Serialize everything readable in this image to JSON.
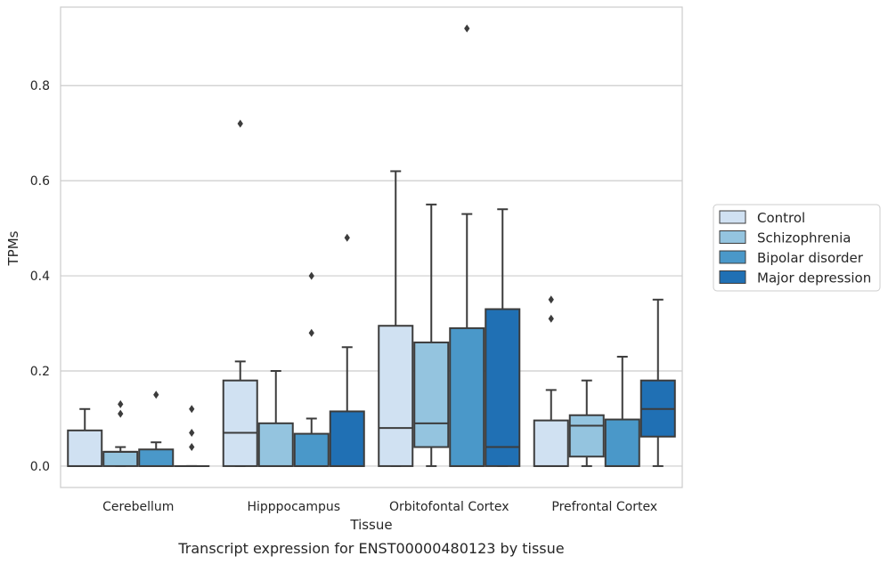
{
  "caption": "Transcript expression for ENST00000480123 by tissue",
  "chart_data": {
    "type": "boxplot",
    "xlabel": "Tissue",
    "ylabel": "TPMs",
    "ylim": [
      -0.045,
      0.965
    ],
    "yticks": [
      "0.0",
      "0.2",
      "0.4",
      "0.6",
      "0.8"
    ],
    "grid": "horizontal",
    "legend_position": "right",
    "categories": [
      "Cerebellum",
      "Hipppocampus",
      "Orbitofontal Cortex",
      "Prefrontal Cortex"
    ],
    "series": [
      {
        "name": "Control",
        "color": "#d0e1f2",
        "boxes": [
          {
            "whislo": 0,
            "q1": 0,
            "med": 0,
            "q3": 0.075,
            "whishi": 0.12,
            "fliers": []
          },
          {
            "whislo": 0,
            "q1": 0,
            "med": 0.07,
            "q3": 0.18,
            "whishi": 0.22,
            "fliers": [
              0.72
            ]
          },
          {
            "whislo": 0,
            "q1": 0,
            "med": 0.08,
            "q3": 0.295,
            "whishi": 0.62,
            "fliers": []
          },
          {
            "whislo": 0,
            "q1": 0,
            "med": 0,
            "q3": 0.096,
            "whishi": 0.16,
            "fliers": [
              0.31,
              0.35
            ]
          }
        ]
      },
      {
        "name": "Schizophrenia",
        "color": "#94c4df",
        "boxes": [
          {
            "whislo": 0,
            "q1": 0,
            "med": 0.03,
            "q3": 0.03,
            "whishi": 0.04,
            "fliers": [
              0.11,
              0.13
            ]
          },
          {
            "whislo": 0,
            "q1": 0,
            "med": 0,
            "q3": 0.09,
            "whishi": 0.2,
            "fliers": []
          },
          {
            "whislo": 0,
            "q1": 0.04,
            "med": 0.09,
            "q3": 0.26,
            "whishi": 0.55,
            "fliers": []
          },
          {
            "whislo": 0,
            "q1": 0.02,
            "med": 0.085,
            "q3": 0.107,
            "whishi": 0.18,
            "fliers": []
          }
        ]
      },
      {
        "name": "Bipolar disorder",
        "color": "#4a98c9",
        "boxes": [
          {
            "whislo": 0,
            "q1": 0,
            "med": 0,
            "q3": 0.035,
            "whishi": 0.05,
            "fliers": [
              0.15
            ]
          },
          {
            "whislo": 0,
            "q1": 0,
            "med": 0,
            "q3": 0.068,
            "whishi": 0.1,
            "fliers": [
              0.28,
              0.4
            ]
          },
          {
            "whislo": 0,
            "q1": 0,
            "med": 0,
            "q3": 0.29,
            "whishi": 0.53,
            "fliers": [
              0.92
            ]
          },
          {
            "whislo": 0,
            "q1": 0,
            "med": 0,
            "q3": 0.098,
            "whishi": 0.23,
            "fliers": []
          }
        ]
      },
      {
        "name": "Major depression",
        "color": "#2070b4",
        "boxes": [
          {
            "whislo": 0,
            "q1": 0,
            "med": 0,
            "q3": 0,
            "whishi": 0,
            "fliers": [
              0.04,
              0.07,
              0.12
            ]
          },
          {
            "whislo": 0,
            "q1": 0,
            "med": 0,
            "q3": 0.115,
            "whishi": 0.25,
            "fliers": [
              0.48
            ]
          },
          {
            "whislo": 0,
            "q1": 0,
            "med": 0.04,
            "q3": 0.33,
            "whishi": 0.54,
            "fliers": []
          },
          {
            "whislo": 0,
            "q1": 0.062,
            "med": 0.12,
            "q3": 0.18,
            "whishi": 0.35,
            "fliers": []
          }
        ]
      }
    ]
  }
}
